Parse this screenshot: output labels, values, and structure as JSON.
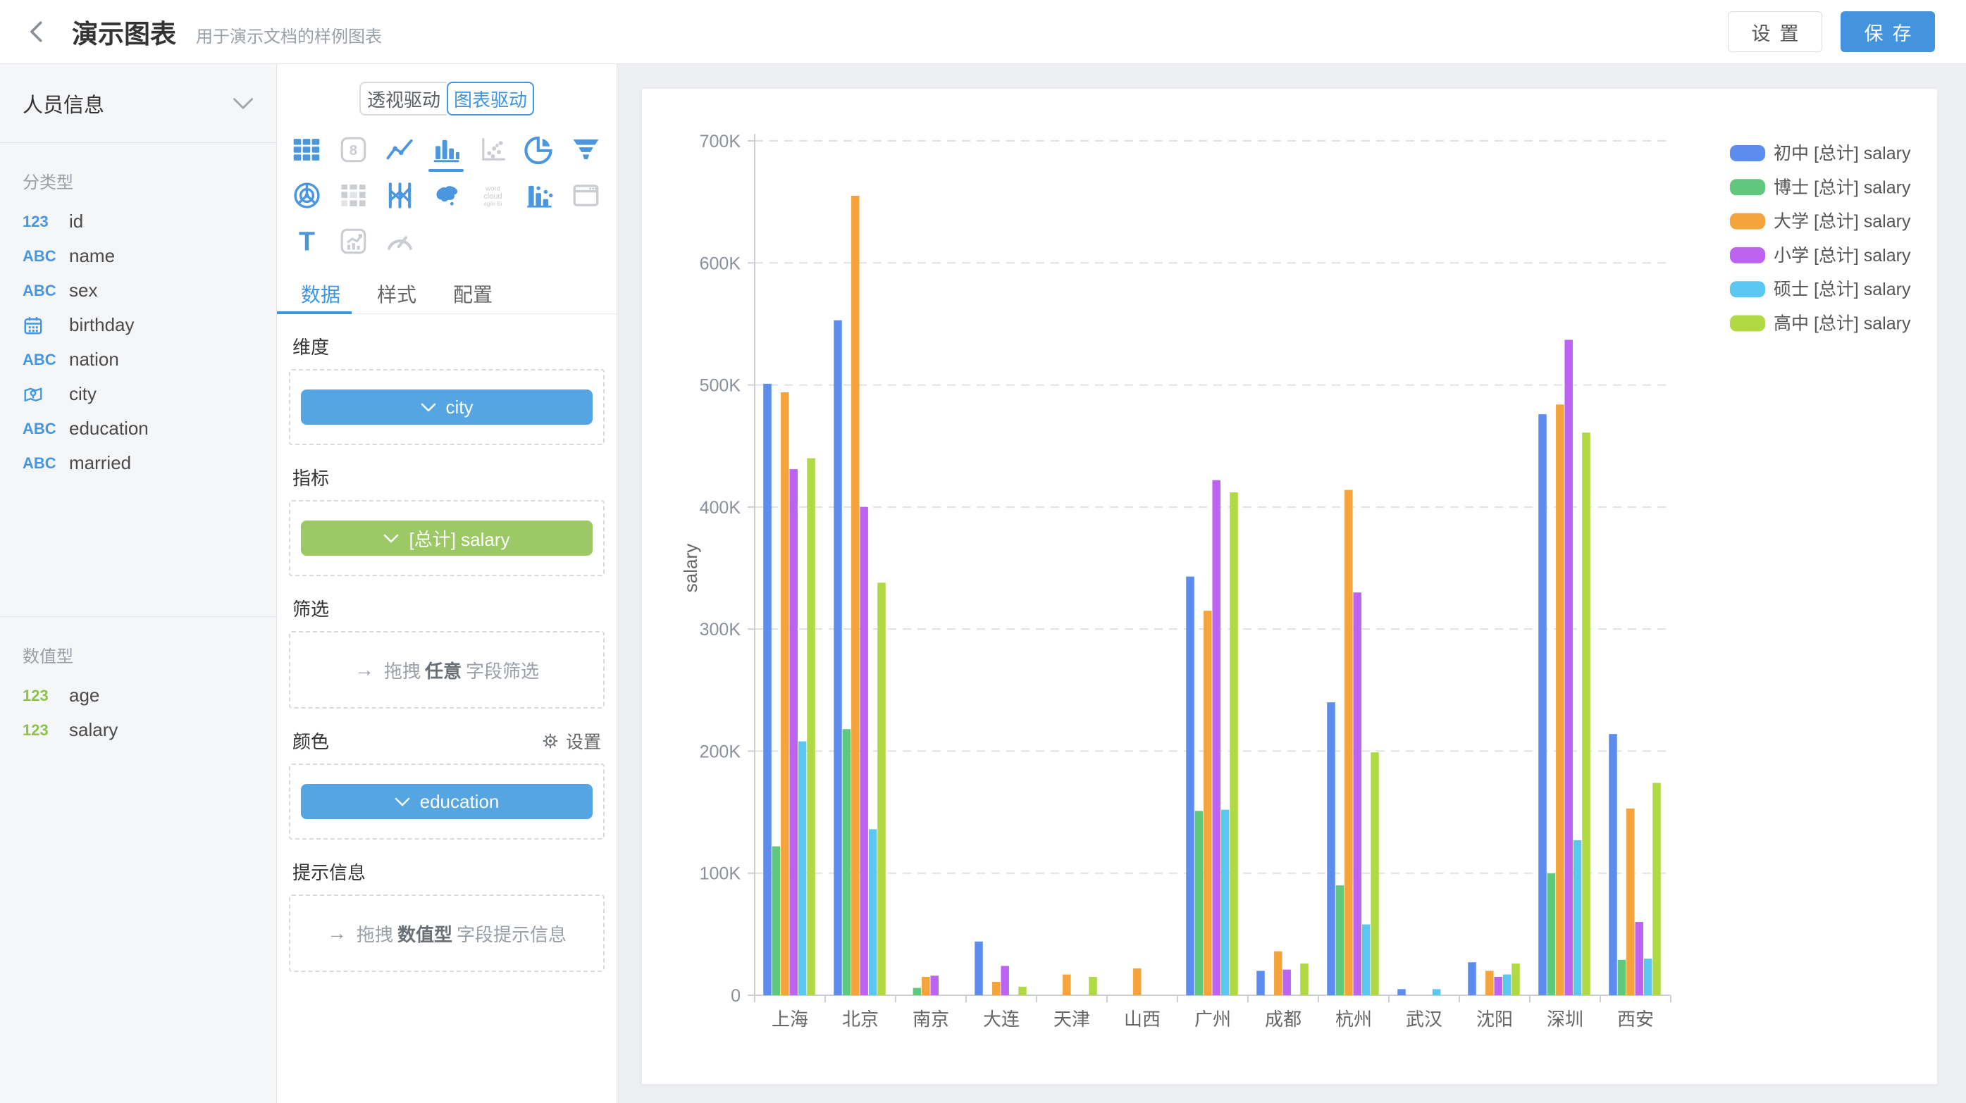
{
  "header": {
    "title": "演示图表",
    "subtitle": "用于演示文档的样例图表",
    "settings_label": "设置",
    "save_label": "保存"
  },
  "sidebar": {
    "dataset_name": "人员信息",
    "sections": [
      {
        "title": "分类型",
        "items": [
          {
            "icon": "numeric-field-icon",
            "glyph": "123",
            "label": "id",
            "green": false
          },
          {
            "icon": "text-field-icon",
            "glyph": "ABC",
            "label": "name",
            "green": false
          },
          {
            "icon": "text-field-icon",
            "glyph": "ABC",
            "label": "sex",
            "green": false
          },
          {
            "icon": "date-field-icon",
            "glyph": "calendar",
            "label": "birthday",
            "green": false
          },
          {
            "icon": "text-field-icon",
            "glyph": "ABC",
            "label": "nation",
            "green": false
          },
          {
            "icon": "geo-field-icon",
            "glyph": "map-pin",
            "label": "city",
            "green": false
          },
          {
            "icon": "text-field-icon",
            "glyph": "ABC",
            "label": "education",
            "green": false
          },
          {
            "icon": "text-field-icon",
            "glyph": "ABC",
            "label": "married",
            "green": false
          }
        ]
      },
      {
        "title": "数值型",
        "items": [
          {
            "icon": "numeric-field-icon",
            "glyph": "123",
            "label": "age",
            "green": true
          },
          {
            "icon": "numeric-field-icon",
            "glyph": "123",
            "label": "salary",
            "green": true
          }
        ]
      }
    ]
  },
  "panel": {
    "mode_tabs": [
      {
        "label": "透视驱动",
        "active": false
      },
      {
        "label": "图表驱动",
        "active": true
      }
    ],
    "chart_icons": [
      {
        "name": "table",
        "state": "enabled"
      },
      {
        "name": "number-card",
        "state": "disabled"
      },
      {
        "name": "line-chart",
        "state": "enabled"
      },
      {
        "name": "bar-chart",
        "state": "selected"
      },
      {
        "name": "scatter-chart",
        "state": "disabled"
      },
      {
        "name": "pie-chart",
        "state": "enabled"
      },
      {
        "name": "funnel-chart",
        "state": "enabled"
      },
      {
        "name": "radar-chart",
        "state": "enabled"
      },
      {
        "name": "pivot-table",
        "state": "disabled"
      },
      {
        "name": "parallel-chart",
        "state": "enabled"
      },
      {
        "name": "china-map",
        "state": "enabled"
      },
      {
        "name": "word-cloud",
        "state": "disabled"
      },
      {
        "name": "rank-bar",
        "state": "enabled"
      },
      {
        "name": "web-frame",
        "state": "disabled"
      },
      {
        "name": "text",
        "state": "enabled"
      },
      {
        "name": "combo-chart",
        "state": "disabled"
      },
      {
        "name": "gauge",
        "state": "disabled"
      }
    ],
    "tabs": [
      {
        "label": "数据",
        "active": true
      },
      {
        "label": "样式",
        "active": false
      },
      {
        "label": "配置",
        "active": false
      }
    ],
    "dimension": {
      "label": "维度",
      "chip": {
        "text": "city",
        "color": "#55a5e2"
      }
    },
    "measure": {
      "label": "指标",
      "chip": {
        "text": "[总计] salary",
        "color": "#9cc865"
      }
    },
    "filter": {
      "label": "筛选",
      "hint_prefix": "拖拽",
      "hint_bold": "任意",
      "hint_suffix": "字段筛选"
    },
    "color": {
      "label": "颜色",
      "action_label": "设置",
      "chip": {
        "text": "education",
        "color": "#55a5e2"
      }
    },
    "tooltip": {
      "label": "提示信息",
      "hint_prefix": "拖拽",
      "hint_bold": "数值型",
      "hint_suffix": "字段提示信息"
    }
  },
  "colors": {
    "accent": "#4493de",
    "icon_blue": "#4a97e0",
    "icon_gray": "#c9ccd1",
    "grid_line": "#dfe1e6",
    "axis_line": "#ccd0d6",
    "axis_text": "#8a9099",
    "label_text": "#666666"
  },
  "chart_data": {
    "type": "bar",
    "title": "",
    "xlabel": "",
    "ylabel": "salary",
    "ylim": [
      0,
      700000
    ],
    "y_tick_step": 100000,
    "y_tick_labels": [
      "0",
      "100K",
      "200K",
      "300K",
      "400K",
      "500K",
      "600K",
      "700K"
    ],
    "grid": "dashed-horizontal",
    "legend_position": "right",
    "categories": [
      "上海",
      "北京",
      "南京",
      "大连",
      "天津",
      "山西",
      "广州",
      "成都",
      "杭州",
      "武汉",
      "沈阳",
      "深圳",
      "西安"
    ],
    "series": [
      {
        "name": "初中 [总计] salary",
        "color": "#5c8dee",
        "values": [
          501000,
          553000,
          0,
          44000,
          0,
          0,
          343000,
          20000,
          240000,
          5000,
          27000,
          476000,
          214000
        ]
      },
      {
        "name": "博士 [总计] salary",
        "color": "#60c87d",
        "values": [
          122000,
          218000,
          6000,
          0,
          0,
          0,
          151000,
          0,
          90000,
          0,
          0,
          100000,
          29000
        ]
      },
      {
        "name": "大学 [总计] salary",
        "color": "#f4a33d",
        "values": [
          494000,
          655000,
          15000,
          11000,
          17000,
          22000,
          315000,
          36000,
          414000,
          0,
          20000,
          484000,
          153000
        ]
      },
      {
        "name": "小学 [总计] salary",
        "color": "#be63f1",
        "values": [
          431000,
          400000,
          16000,
          24000,
          0,
          0,
          422000,
          21000,
          330000,
          0,
          15000,
          537000,
          60000
        ]
      },
      {
        "name": "硕士 [总计] salary",
        "color": "#5ac6f2",
        "values": [
          208000,
          136000,
          0,
          0,
          0,
          0,
          152000,
          0,
          58000,
          5000,
          17000,
          127000,
          30000
        ]
      },
      {
        "name": "高中 [总计] salary",
        "color": "#b1d944",
        "values": [
          440000,
          338000,
          0,
          7000,
          15000,
          0,
          412000,
          26000,
          199000,
          0,
          26000,
          461000,
          174000
        ]
      }
    ]
  }
}
